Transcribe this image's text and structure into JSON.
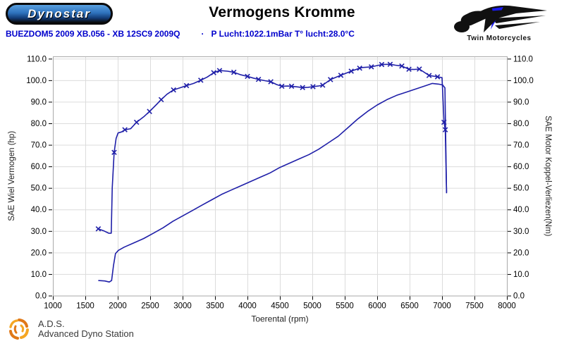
{
  "header": {
    "brand_logo_text": "Dynostar",
    "title": "Vermogens Kromme",
    "twin_logo_text": "Twin Motorcycles"
  },
  "subtitle": {
    "run": "BUEZDOM5 2009 XB.056 - XB 12SC9 2009Q",
    "sep": "·",
    "conditions": "P Lucht:1022.1mBar T° lucht:28.0°C"
  },
  "footer": {
    "abbr": "A.D.S.",
    "name": "Advanced Dyno Station"
  },
  "colors": {
    "curve": "#1f1fa8",
    "subtitle_blue": "#0000cc",
    "grid": "#dcdcdc",
    "frame": "#aaaaaa",
    "dynostar_blue": "#2e72bd",
    "ads_orange": "#e07818",
    "ads_amber": "#f5a623",
    "twin_accent_blue": "#1a1aee"
  },
  "chart_data": {
    "type": "line",
    "title": "Vermogens Kromme",
    "xlabel": "Toerental (rpm)",
    "ylabel_left": "SAE Wiel Vermogen (hp)",
    "ylabel_right": "SAE Motor Koppel-Verliezen(Nm)",
    "xlim": [
      1000,
      8000
    ],
    "ylim": [
      0,
      110
    ],
    "xticks": [
      1000,
      1500,
      2000,
      2500,
      3000,
      3500,
      4000,
      4500,
      5000,
      5500,
      6000,
      6500,
      7000,
      7500,
      8000
    ],
    "yticks": [
      0,
      10,
      20,
      30,
      40,
      50,
      60,
      70,
      80,
      90,
      100,
      110
    ],
    "grid": true,
    "legend": "none",
    "series": [
      {
        "name": "koppel-curve",
        "marker": "x",
        "points": [
          [
            1700,
            31,
            1
          ],
          [
            1790,
            30,
            0
          ],
          [
            1860,
            29,
            0
          ],
          [
            1900,
            29,
            0
          ],
          [
            1915,
            50,
            0
          ],
          [
            1945,
            66.5,
            1
          ],
          [
            1975,
            73,
            0
          ],
          [
            2005,
            75.5,
            0
          ],
          [
            2060,
            76,
            0
          ],
          [
            2110,
            77,
            1
          ],
          [
            2200,
            77.5,
            0
          ],
          [
            2290,
            80.5,
            1
          ],
          [
            2400,
            83,
            0
          ],
          [
            2490,
            85.5,
            1
          ],
          [
            2590,
            88.5,
            0
          ],
          [
            2670,
            91,
            1
          ],
          [
            2760,
            93.5,
            0
          ],
          [
            2860,
            95.5,
            1
          ],
          [
            2960,
            96.5,
            0
          ],
          [
            3060,
            97.5,
            1
          ],
          [
            3170,
            98.5,
            0
          ],
          [
            3280,
            100,
            1
          ],
          [
            3380,
            101.5,
            0
          ],
          [
            3480,
            103.5,
            1
          ],
          [
            3570,
            104.5,
            1
          ],
          [
            3690,
            104.2,
            0
          ],
          [
            3790,
            103.7,
            1
          ],
          [
            3900,
            102.5,
            0
          ],
          [
            4000,
            101.8,
            1
          ],
          [
            4090,
            101,
            0
          ],
          [
            4170,
            100.4,
            1
          ],
          [
            4270,
            99.8,
            0
          ],
          [
            4360,
            99.3,
            1
          ],
          [
            4450,
            98,
            0
          ],
          [
            4530,
            97.2,
            1
          ],
          [
            4620,
            97.3,
            0
          ],
          [
            4680,
            97.2,
            1
          ],
          [
            4770,
            96.9,
            0
          ],
          [
            4850,
            96.6,
            1
          ],
          [
            4930,
            96.7,
            0
          ],
          [
            5010,
            97,
            1
          ],
          [
            5090,
            97.3,
            0
          ],
          [
            5160,
            97.7,
            1
          ],
          [
            5280,
            100.3,
            1
          ],
          [
            5440,
            102.3,
            1
          ],
          [
            5600,
            104.2,
            1
          ],
          [
            5730,
            105.6,
            1
          ],
          [
            5770,
            105.9,
            0
          ],
          [
            5910,
            106.2,
            1
          ],
          [
            6070,
            107.3,
            1
          ],
          [
            6200,
            107.4,
            1
          ],
          [
            6280,
            107,
            0
          ],
          [
            6380,
            106.6,
            1
          ],
          [
            6490,
            105.1,
            1
          ],
          [
            6570,
            105,
            0
          ],
          [
            6650,
            105.2,
            1
          ],
          [
            6800,
            102.2,
            1
          ],
          [
            6930,
            101.6,
            1
          ],
          [
            7000,
            101.2,
            0
          ],
          [
            7030,
            80.5,
            1
          ],
          [
            7050,
            77,
            1
          ],
          [
            7070,
            48,
            0
          ]
        ]
      },
      {
        "name": "vermogen-curve",
        "marker": "none",
        "points": [
          [
            1700,
            7,
            0
          ],
          [
            1800,
            6.8,
            0
          ],
          [
            1870,
            6.3,
            0
          ],
          [
            1905,
            7,
            0
          ],
          [
            1935,
            14,
            0
          ],
          [
            1965,
            19.5,
            0
          ],
          [
            2010,
            21,
            0
          ],
          [
            2100,
            22.5,
            0
          ],
          [
            2250,
            24.5,
            0
          ],
          [
            2400,
            26.5,
            0
          ],
          [
            2550,
            29,
            0
          ],
          [
            2700,
            31.5,
            0
          ],
          [
            2850,
            34.5,
            0
          ],
          [
            3000,
            37,
            0
          ],
          [
            3150,
            39.5,
            0
          ],
          [
            3300,
            42,
            0
          ],
          [
            3450,
            44.5,
            0
          ],
          [
            3600,
            47,
            0
          ],
          [
            3750,
            49,
            0
          ],
          [
            3900,
            51,
            0
          ],
          [
            4050,
            53,
            0
          ],
          [
            4200,
            55,
            0
          ],
          [
            4350,
            57,
            0
          ],
          [
            4500,
            59.5,
            0
          ],
          [
            4650,
            61.5,
            0
          ],
          [
            4800,
            63.5,
            0
          ],
          [
            4950,
            65.5,
            0
          ],
          [
            5100,
            68,
            0
          ],
          [
            5250,
            71,
            0
          ],
          [
            5400,
            74,
            0
          ],
          [
            5550,
            78,
            0
          ],
          [
            5700,
            82,
            0
          ],
          [
            5850,
            85.5,
            0
          ],
          [
            6000,
            88.5,
            0
          ],
          [
            6150,
            91,
            0
          ],
          [
            6300,
            93,
            0
          ],
          [
            6450,
            94.5,
            0
          ],
          [
            6600,
            96,
            0
          ],
          [
            6750,
            97.5,
            0
          ],
          [
            6850,
            98.5,
            0
          ],
          [
            6950,
            98.2,
            0
          ],
          [
            7010,
            97.8,
            0
          ],
          [
            7045,
            96.5,
            0
          ],
          [
            7070,
            47.5,
            0
          ]
        ]
      }
    ]
  }
}
